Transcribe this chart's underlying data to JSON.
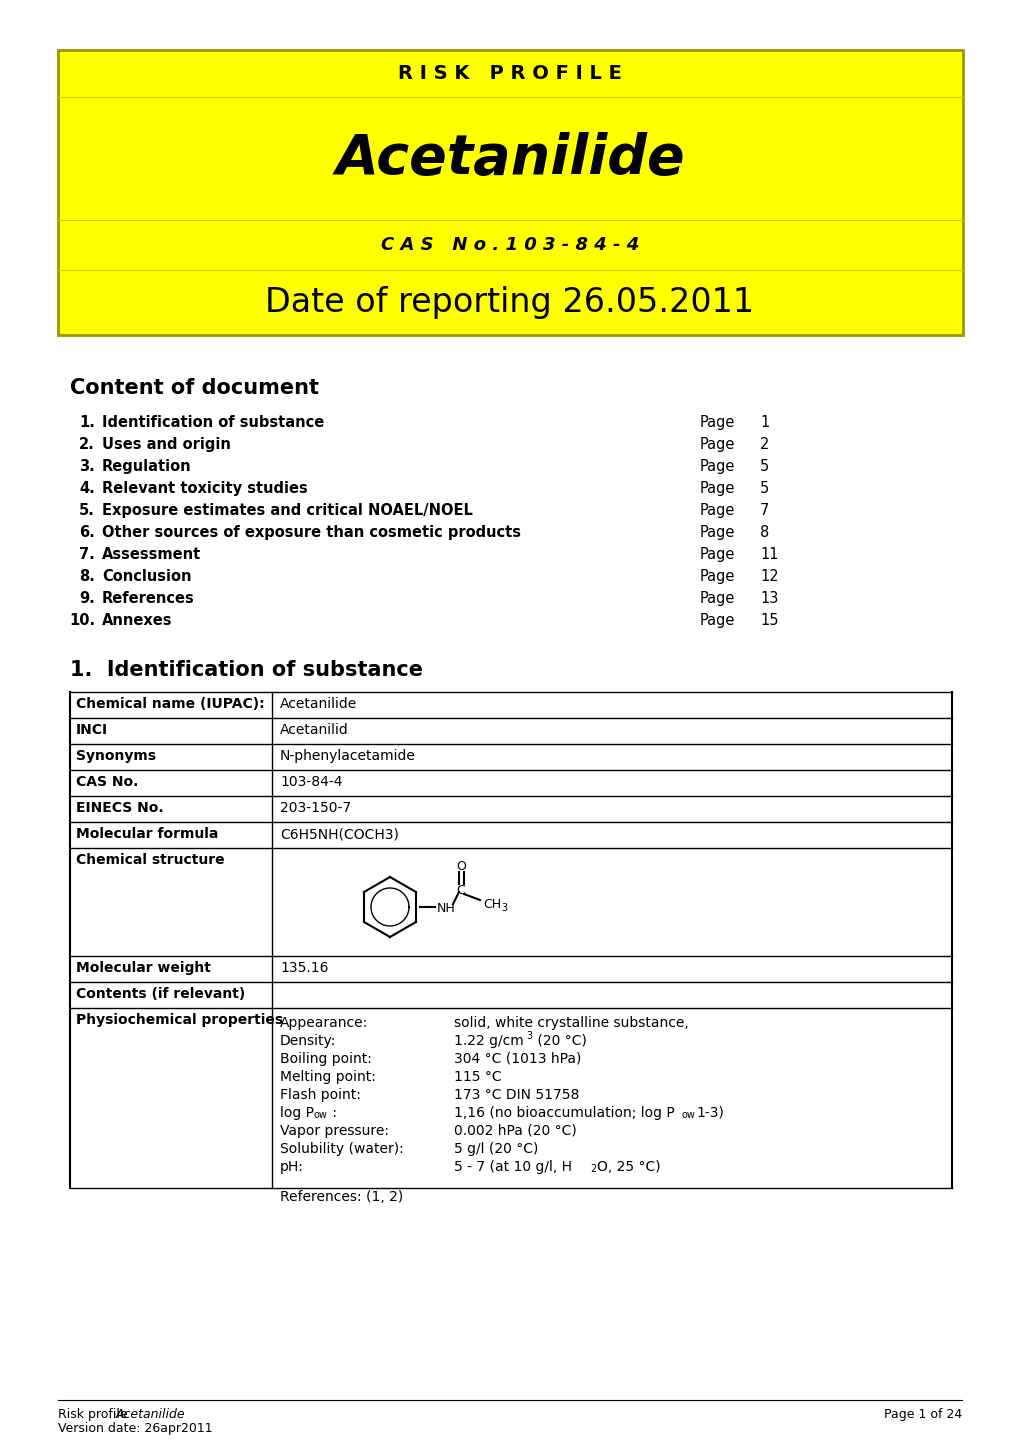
{
  "page_bg": "#ffffff",
  "yellow_bg": "#ffff00",
  "black": "#000000",
  "border_color": "#999900",
  "header_title": "R I S K   P R O F I L E",
  "main_title": "Acetanilide",
  "cas_line": "C A S   N o . 1 0 3 - 8 4 - 4",
  "date_line": "Date of reporting 26.05.2011",
  "content_title": "Content of document",
  "toc_items": [
    [
      "1.",
      "Identification of substance",
      "Page",
      "1"
    ],
    [
      "2.",
      "Uses and origin",
      "Page",
      "2"
    ],
    [
      "3.",
      "Regulation",
      "Page",
      "5"
    ],
    [
      "4.",
      "Relevant toxicity studies",
      "Page",
      "5"
    ],
    [
      "5.",
      "Exposure estimates and critical NOAEL/NOEL",
      "Page",
      "7"
    ],
    [
      "6.",
      "Other sources of exposure than cosmetic products",
      "Page",
      "8"
    ],
    [
      "7.",
      "Assessment",
      "Page",
      "11"
    ],
    [
      "8.",
      "Conclusion",
      "Page",
      "12"
    ],
    [
      "9.",
      "References",
      "Page",
      "13"
    ],
    [
      "10.",
      "Annexes",
      "Page",
      "15"
    ]
  ],
  "section1_title": "1.  Identification of substance",
  "table_rows": [
    [
      "Chemical name (IUPAC):",
      "Acetanilide"
    ],
    [
      "INCI",
      "Acetanilid"
    ],
    [
      "Synonyms",
      "N-phenylacetamide"
    ],
    [
      "CAS No.",
      "103-84-4"
    ],
    [
      "EINECS No.",
      "203-150-7"
    ],
    [
      "Molecular formula",
      "C6H5NH(COCH3)"
    ],
    [
      "Chemical structure",
      ""
    ],
    [
      "Molecular weight",
      "135.16"
    ],
    [
      "Contents (if relevant)",
      ""
    ],
    [
      "Physiochemical properties",
      ""
    ]
  ],
  "physio_props": [
    [
      "Appearance:",
      "solid, white crystalline substance,"
    ],
    [
      "Density:",
      "1.22 g/cm3 (20 C)"
    ],
    [
      "Boiling point:",
      "304 C (1013 hPa)"
    ],
    [
      "Melting point:",
      "115 C"
    ],
    [
      "Flash point:",
      "173 C DIN 51758"
    ],
    [
      "log Pow :",
      "1,16 (no bioaccumulation; log Pow1-3)"
    ],
    [
      "Vapor pressure:",
      "0.002 hPa (20 C)"
    ],
    [
      "Solubility (water):",
      "5 g/l (20 C)"
    ],
    [
      "pH:",
      "5 - 7 (at 10 g/l, H2O, 25 C)"
    ]
  ],
  "footer_right": "Page 1 of 24"
}
